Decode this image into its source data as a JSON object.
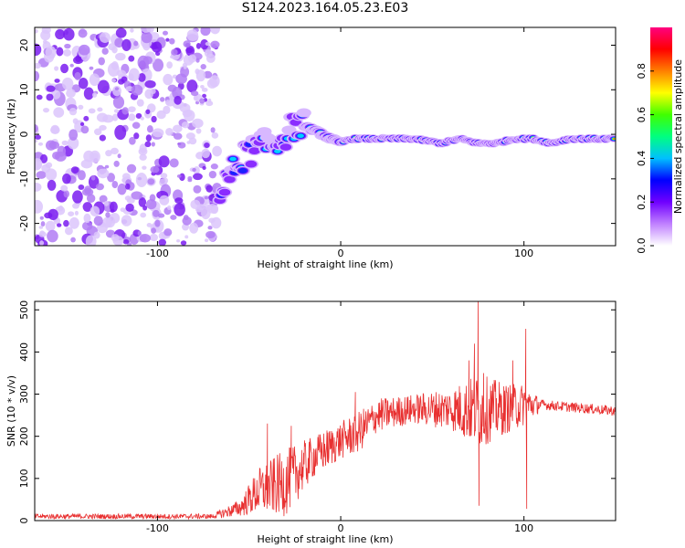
{
  "title": "S124.2023.164.05.23.E03",
  "chart_data": [
    {
      "type": "heatmap",
      "xlabel": "Height of straight line (km)",
      "ylabel": "Frequency (Hz)",
      "xlim": [
        -167,
        150
      ],
      "ylim": [
        -25,
        24
      ],
      "xticks": [
        -100,
        0,
        100
      ],
      "yticks": [
        -20,
        -10,
        0,
        10,
        20
      ],
      "colorbar": {
        "label": "Normalized spectral amplitude",
        "range": [
          0,
          1
        ],
        "ticks": [
          "0.0",
          "0.2",
          "0.4",
          "0.6",
          "0.8"
        ],
        "colors": [
          "#ffffff",
          "#c080ff",
          "#7000ff",
          "#0000ff",
          "#00c0ff",
          "#00ff80",
          "#40ff00",
          "#ffff00",
          "#ff8000",
          "#ff0000",
          "#ff0080"
        ]
      },
      "noise_region_x": [
        -167,
        -67
      ],
      "signal_track": [
        {
          "x": -66,
          "y": -14
        },
        {
          "x": -60,
          "y": -9
        },
        {
          "x": -55,
          "y": -6
        },
        {
          "x": -50,
          "y": -4
        },
        {
          "x": -45,
          "y": -3
        },
        {
          "x": -40,
          "y": -2
        },
        {
          "x": -35,
          "y": -2
        },
        {
          "x": -30,
          "y": 0
        },
        {
          "x": -25,
          "y": 2
        },
        {
          "x": -20,
          "y": 2
        },
        {
          "x": -15,
          "y": 1
        },
        {
          "x": -10,
          "y": 0
        },
        {
          "x": -5,
          "y": -1
        },
        {
          "x": 0,
          "y": -2
        },
        {
          "x": 5,
          "y": -1
        },
        {
          "x": 20,
          "y": -1
        },
        {
          "x": 40,
          "y": -1
        },
        {
          "x": 55,
          "y": -2
        },
        {
          "x": 65,
          "y": -1
        },
        {
          "x": 75,
          "y": -2
        },
        {
          "x": 85,
          "y": -2
        },
        {
          "x": 95,
          "y": -1
        },
        {
          "x": 105,
          "y": -1
        },
        {
          "x": 115,
          "y": -2
        },
        {
          "x": 125,
          "y": -1
        },
        {
          "x": 150,
          "y": -1
        }
      ]
    },
    {
      "type": "line",
      "xlabel": "Height of straight line (km)",
      "ylabel": "SNR (10 * v/v)",
      "xlim": [
        -167,
        150
      ],
      "ylim": [
        0,
        520
      ],
      "xticks": [
        -100,
        0,
        100
      ],
      "yticks": [
        0,
        100,
        200,
        300,
        400,
        500
      ],
      "color": "#e83030",
      "envelope": [
        {
          "x": -167,
          "mean": 10,
          "amp": 6
        },
        {
          "x": -70,
          "mean": 10,
          "amp": 6
        },
        {
          "x": -55,
          "mean": 30,
          "amp": 20
        },
        {
          "x": -45,
          "mean": 70,
          "amp": 55
        },
        {
          "x": -30,
          "mean": 90,
          "amp": 80
        },
        {
          "x": -15,
          "mean": 150,
          "amp": 50
        },
        {
          "x": 0,
          "mean": 190,
          "amp": 45
        },
        {
          "x": 10,
          "mean": 210,
          "amp": 50
        },
        {
          "x": 20,
          "mean": 250,
          "amp": 40
        },
        {
          "x": 40,
          "mean": 265,
          "amp": 35
        },
        {
          "x": 60,
          "mean": 265,
          "amp": 50
        },
        {
          "x": 75,
          "mean": 260,
          "amp": 90
        },
        {
          "x": 90,
          "mean": 265,
          "amp": 60
        },
        {
          "x": 100,
          "mean": 275,
          "amp": 50
        },
        {
          "x": 110,
          "mean": 275,
          "amp": 12
        },
        {
          "x": 150,
          "mean": 260,
          "amp": 12
        }
      ],
      "spikes": [
        {
          "x": 8,
          "y": 305
        },
        {
          "x": -27,
          "y": 225
        },
        {
          "x": -40,
          "y": 230
        },
        {
          "x": 70,
          "y": 380
        },
        {
          "x": 73,
          "y": 420
        },
        {
          "x": 75,
          "y": 520
        },
        {
          "x": 75.5,
          "y": 35
        },
        {
          "x": 78,
          "y": 350
        },
        {
          "x": 101,
          "y": 455
        },
        {
          "x": 101.5,
          "y": 28
        },
        {
          "x": 94,
          "y": 380
        }
      ]
    }
  ]
}
